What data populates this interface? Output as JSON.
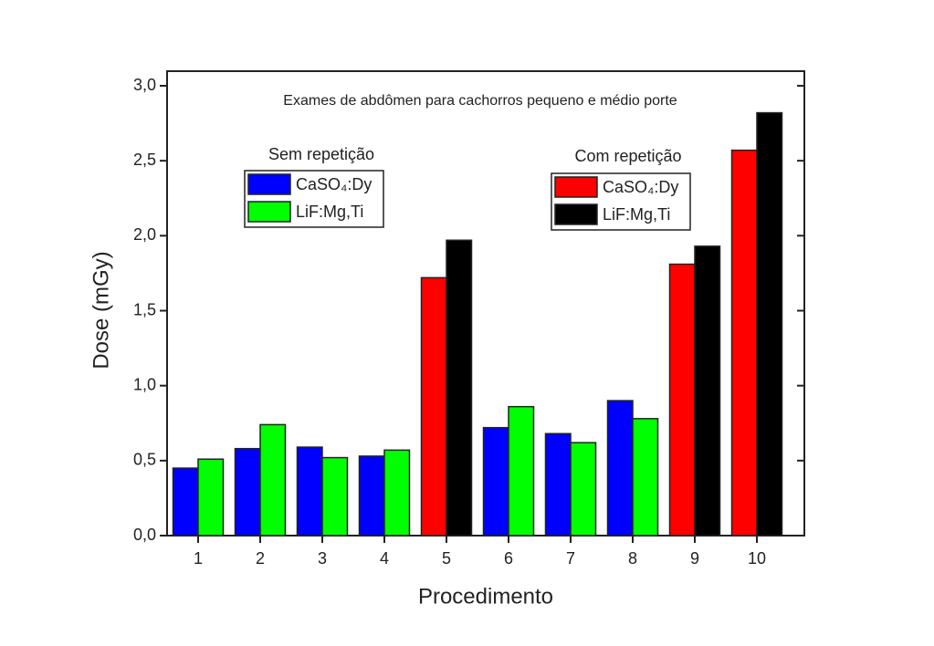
{
  "chart_data": {
    "type": "bar",
    "title": "Exames de abdômen para cachorros pequeno e médio porte",
    "x_label": "Procedimento",
    "y_label": "Dose (mGy)",
    "categories": [
      "1",
      "2",
      "3",
      "4",
      "5",
      "6",
      "7",
      "8",
      "9",
      "10"
    ],
    "legend_titles": [
      "Sem repetição",
      "Com repetição"
    ],
    "series": [
      {
        "name": "CaSO₄:Dy",
        "color": "#0000ff",
        "values": [
          0.45,
          0.58,
          0.59,
          0.53,
          null,
          0.72,
          0.68,
          0.9,
          null,
          null
        ]
      },
      {
        "name": "LiF:Mg,Ti",
        "color": "#00ff00",
        "values": [
          0.51,
          0.74,
          0.52,
          0.57,
          null,
          0.86,
          0.62,
          0.78,
          null,
          null
        ]
      },
      {
        "name": "CaSO₄:Dy",
        "color": "#ff0000",
        "values": [
          null,
          null,
          null,
          null,
          1.72,
          null,
          null,
          null,
          1.81,
          2.57
        ]
      },
      {
        "name": "LiF:Mg,Ti",
        "color": "#000000",
        "values": [
          null,
          null,
          null,
          null,
          1.97,
          null,
          null,
          null,
          1.93,
          2.82
        ]
      }
    ],
    "ylim": [
      0,
      3
    ],
    "yticks": [
      {
        "value": 0,
        "label": "0,0"
      },
      {
        "value": 0.5,
        "label": "0,5"
      },
      {
        "value": 1,
        "label": "1,0"
      },
      {
        "value": 1.5,
        "label": "1,5"
      },
      {
        "value": 2,
        "label": "2,0"
      },
      {
        "value": 2.5,
        "label": "2,5"
      },
      {
        "value": 3,
        "label": "3,0"
      }
    ]
  }
}
